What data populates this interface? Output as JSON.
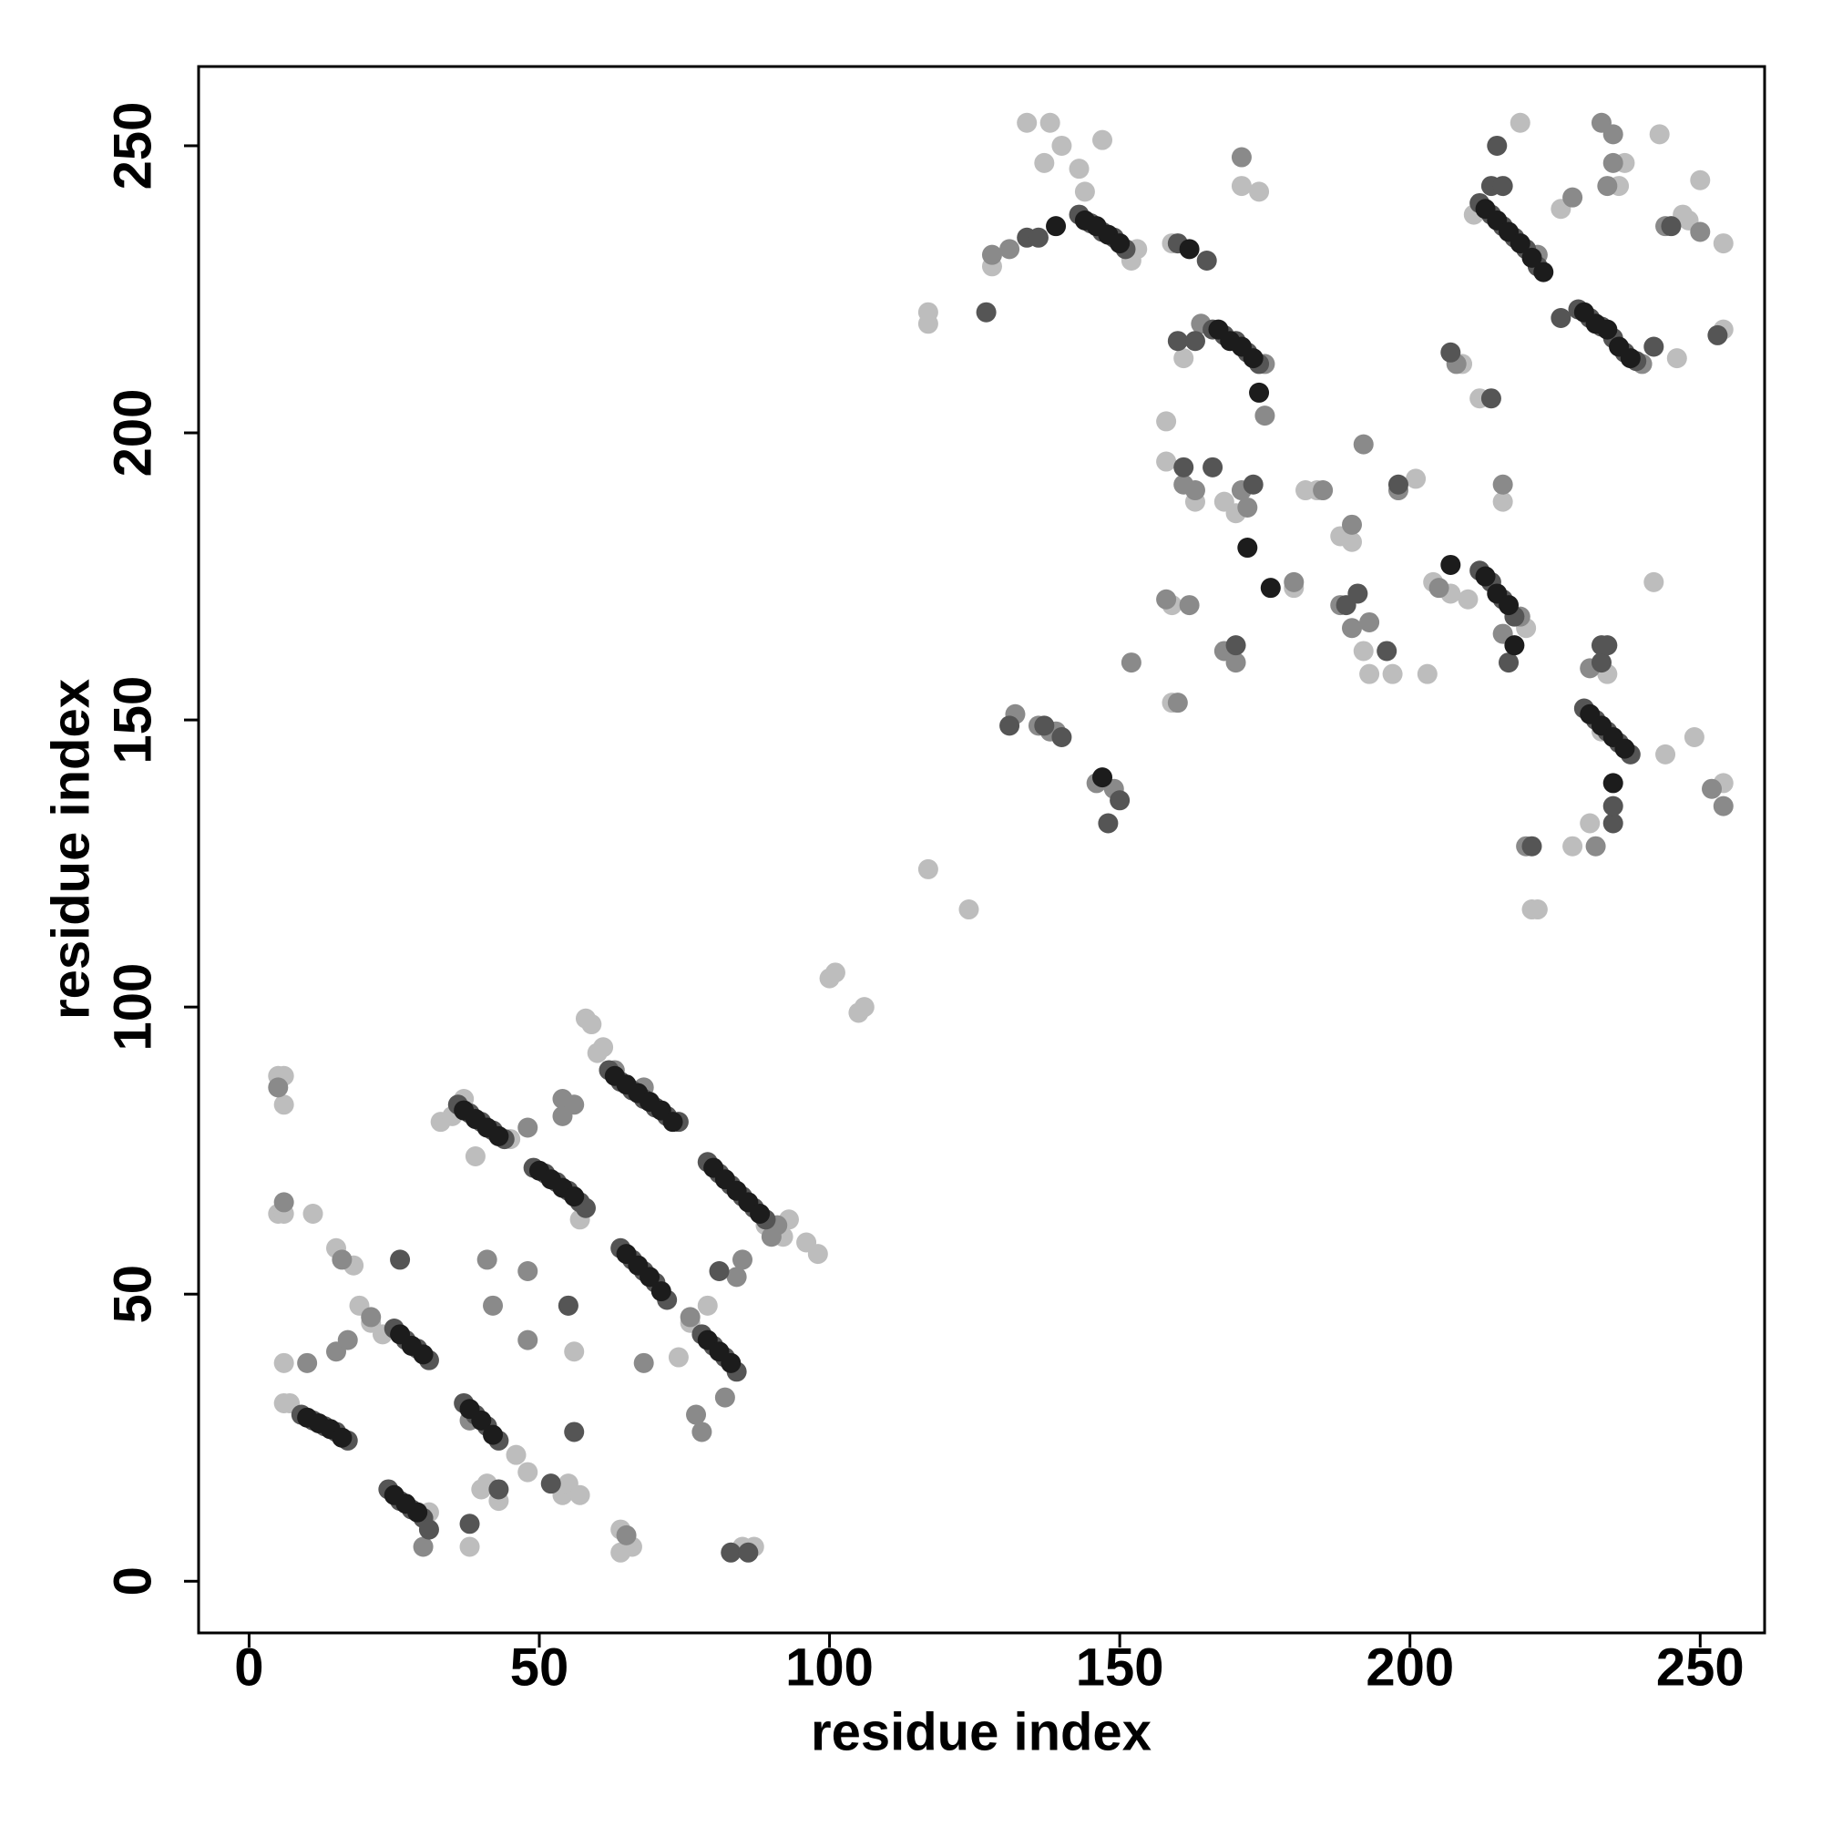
{
  "chart_data": {
    "type": "scatter",
    "xlabel": "residue index",
    "ylabel": "residue index",
    "xlim": [
      -8.7,
      261.1
    ],
    "ylim": [
      -9,
      263.8
    ],
    "xticks": [
      0,
      50,
      100,
      150,
      200,
      250
    ],
    "yticks": [
      0,
      50,
      100,
      150,
      200,
      250
    ],
    "grid": false,
    "series": [
      {
        "color": "#bdbdbd",
        "x": [
          5,
          6,
          6,
          5,
          6,
          6,
          6,
          7,
          11,
          15,
          18,
          19,
          21,
          23,
          31,
          33,
          35,
          37,
          38,
          39,
          40,
          41,
          43,
          44,
          45,
          46,
          48,
          54,
          55,
          56,
          57,
          57,
          58,
          59,
          60,
          61,
          64,
          64,
          66,
          74,
          76,
          79,
          85,
          87,
          89,
          92,
          93,
          96,
          98,
          100,
          101,
          105,
          106,
          117,
          117,
          117,
          124,
          128,
          134,
          137,
          138,
          140,
          143,
          144,
          147,
          152,
          153,
          158,
          158,
          159,
          159,
          159,
          161,
          163,
          168,
          170,
          171,
          174,
          180,
          182,
          184,
          188,
          190,
          192,
          193,
          197,
          203,
          201,
          204,
          209,
          212,
          216,
          219,
          221,
          222,
          226,
          228,
          231,
          234,
          236,
          237,
          242,
          243,
          246,
          247,
          248,
          249,
          250,
          254,
          254,
          254,
          207,
          210,
          220,
          233,
          244,
          211
        ],
        "values": [
          88,
          88,
          83,
          64,
          64,
          38,
          31,
          31,
          64,
          58,
          55,
          48,
          45,
          43,
          12,
          80,
          81,
          84,
          6,
          74,
          16,
          17,
          14,
          77,
          77,
          22,
          19,
          15,
          17,
          40,
          15,
          63,
          98,
          97,
          92,
          93,
          9,
          5,
          6,
          39,
          45,
          48,
          6,
          6,
          62,
          60,
          63,
          59,
          57,
          105,
          106,
          99,
          100,
          221,
          219,
          124,
          117,
          229,
          254,
          247,
          254,
          250,
          246,
          242,
          251,
          230,
          232,
          202,
          195,
          170,
          153,
          233,
          213,
          188,
          188,
          186,
          243,
          242,
          173,
          190,
          190,
          182,
          181,
          162,
          158,
          158,
          158,
          192,
          174,
          212,
          206,
          188,
          254,
          117,
          117,
          239,
          128,
          132,
          158,
          243,
          247,
          174,
          252,
          213,
          238,
          237,
          147,
          244,
          139,
          218,
          233,
          172,
          171,
          166,
          148,
          144,
          238
        ]
      },
      {
        "color": "#8a8a8a",
        "x": [
          5,
          6,
          10,
          15,
          16,
          17,
          21,
          30,
          38,
          41,
          42,
          48,
          48,
          48,
          54,
          54,
          55,
          56,
          63,
          65,
          68,
          68,
          76,
          77,
          78,
          82,
          84,
          85,
          90,
          91,
          132,
          136,
          138,
          146,
          149,
          152,
          158,
          160,
          161,
          163,
          162,
          168,
          170,
          171,
          172,
          175,
          180,
          185,
          188,
          190,
          190,
          192,
          193,
          198,
          205,
          208,
          216,
          216,
          219,
          220,
          231,
          232,
          234,
          235,
          235,
          240,
          244,
          250,
          252,
          254,
          222,
          228,
          233,
          171,
          128,
          131,
          175,
          164,
          139
        ],
        "values": [
          86,
          66,
          38,
          40,
          56,
          42,
          46,
          6,
          28,
          56,
          48,
          79,
          54,
          42,
          84,
          81,
          48,
          83,
          89,
          8,
          38,
          86,
          46,
          29,
          26,
          32,
          53,
          56,
          60,
          62,
          151,
          149,
          148,
          139,
          138,
          160,
          171,
          153,
          191,
          190,
          170,
          162,
          160,
          190,
          187,
          203,
          174,
          190,
          170,
          184,
          166,
          198,
          167,
          190,
          173,
          212,
          191,
          165,
          168,
          128,
          159,
          128,
          243,
          247,
          252,
          212,
          236,
          235,
          138,
          135,
          231,
          241,
          254,
          248,
          231,
          232,
          212,
          219,
          148
        ]
      },
      {
        "color": "#555555",
        "x": [
          9,
          11,
          13,
          15,
          17,
          24,
          26,
          28,
          30,
          31,
          25,
          27,
          29,
          31,
          37,
          39,
          41,
          43,
          36,
          38,
          40,
          42,
          44,
          49,
          51,
          53,
          55,
          57,
          58,
          62,
          64,
          66,
          68,
          70,
          72,
          74,
          64,
          66,
          68,
          70,
          72,
          79,
          81,
          83,
          85,
          87,
          89,
          78,
          80,
          82,
          84,
          143,
          145,
          147,
          149,
          151,
          134,
          136,
          212,
          214,
          216,
          218,
          220,
          222,
          214,
          216,
          215,
          229,
          231,
          233,
          235,
          237,
          239,
          242,
          166,
          168,
          170,
          172,
          174,
          160,
          163,
          212,
          214,
          216,
          218,
          217,
          230,
          232,
          234,
          236,
          238,
          233,
          235,
          235,
          26,
          38,
          43,
          55,
          52,
          56,
          81,
          83,
          86,
          148,
          150,
          127,
          160,
          165,
          161,
          166,
          173,
          170,
          189,
          191,
          196,
          198,
          207,
          214,
          221,
          233,
          234,
          253,
          245,
          226,
          137,
          140,
          131
        ],
        "values": [
          29,
          28,
          27,
          26,
          24.5,
          16,
          14,
          12.5,
          11,
          9,
          44,
          42,
          40.5,
          38.5,
          31,
          29,
          27,
          24.5,
          83,
          81.5,
          80,
          78.5,
          77,
          72,
          71,
          69.5,
          68,
          66,
          65,
          89,
          87,
          85.5,
          84,
          82.5,
          81,
          80,
          58,
          56,
          54,
          52,
          49,
          73,
          71,
          69,
          67,
          65,
          63,
          43,
          41,
          39,
          36.5,
          238,
          236.5,
          235,
          234,
          232,
          234,
          234,
          240,
          238,
          236,
          234,
          232,
          229,
          243,
          243,
          250,
          221.5,
          220,
          218.5,
          216.5,
          214,
          212.5,
          215,
          218,
          217,
          216,
          214,
          212,
          216,
          216,
          176,
          174,
          171,
          168,
          160,
          152,
          150,
          148,
          146,
          144,
          163,
          132,
          135,
          56,
          10,
          16,
          48,
          17,
          26,
          54,
          5,
          5,
          132,
          136,
          221,
          233,
          230,
          194,
          194,
          191,
          163,
          170,
          172,
          162,
          191,
          214,
          206,
          128,
          160,
          163,
          217,
          236,
          220,
          149,
          147,
          149
        ]
      },
      {
        "color": "#1c1c1c",
        "x": [
          10,
          12,
          14,
          16,
          25,
          27,
          29,
          26,
          28,
          30,
          38,
          40,
          42,
          37,
          39,
          41,
          43,
          50,
          52,
          54,
          56,
          63,
          65,
          67,
          69,
          71,
          73,
          65,
          67,
          69,
          71,
          80,
          82,
          84,
          86,
          88,
          79,
          81,
          83,
          144,
          146,
          148,
          150,
          213,
          215,
          217,
          219,
          221,
          223,
          230,
          232,
          234,
          236,
          238,
          167,
          169,
          171,
          173,
          213,
          215,
          217,
          218,
          231,
          233,
          235,
          237,
          235,
          139,
          174,
          172,
          176,
          207,
          162,
          147
        ],
        "values": [
          28.5,
          27.5,
          26.5,
          25,
          15,
          13.5,
          12,
          43,
          41,
          39.5,
          30,
          28,
          25.5,
          82,
          80.5,
          79,
          77.5,
          71.5,
          70,
          68.5,
          67,
          88,
          86.5,
          85,
          83.5,
          82,
          80,
          57,
          55,
          53,
          50.5,
          72,
          70,
          68,
          66,
          64,
          42,
          40,
          38,
          237,
          236,
          234.5,
          233,
          239,
          237,
          235,
          233,
          230.5,
          228,
          221,
          219,
          218,
          215,
          213,
          218,
          216,
          215,
          213,
          175,
          172,
          170,
          163,
          151,
          149,
          147,
          145,
          139,
          236,
          207,
          180,
          173,
          177,
          232,
          140
        ]
      }
    ]
  }
}
